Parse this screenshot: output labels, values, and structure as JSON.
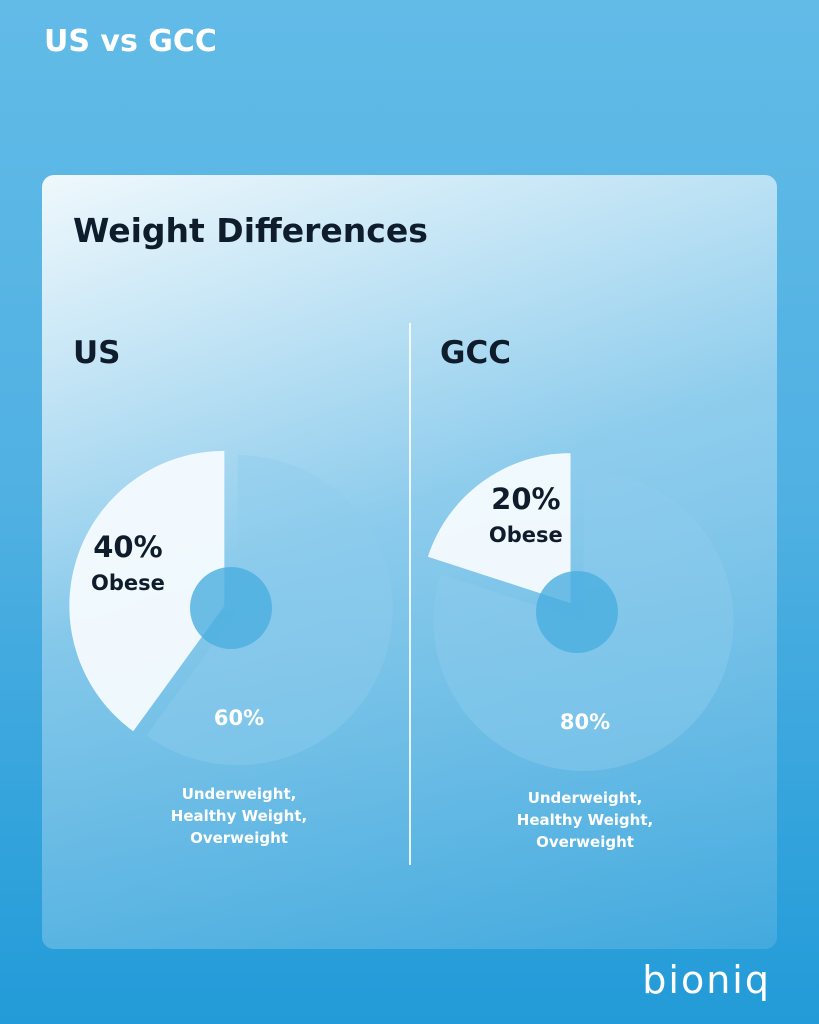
{
  "header": {
    "title": "US vs GCC"
  },
  "card": {
    "title": "Weight Differences"
  },
  "chart_data": [
    {
      "type": "pie",
      "title": "US",
      "categories": [
        "Obese",
        "Underweight, Healthy Weight, Overweight"
      ],
      "values": [
        40,
        60
      ],
      "value_labels": [
        "40%",
        "60%"
      ],
      "colors": [
        "#f6fbfe",
        "#8fcdee"
      ]
    },
    {
      "type": "pie",
      "title": "GCC",
      "categories": [
        "Obese",
        "Underweight, Healthy Weight, Overweight"
      ],
      "values": [
        20,
        80
      ],
      "value_labels": [
        "20%",
        "80%"
      ],
      "colors": [
        "#f6fbfe",
        "#8fcdee"
      ]
    }
  ],
  "brand": "bioniq"
}
